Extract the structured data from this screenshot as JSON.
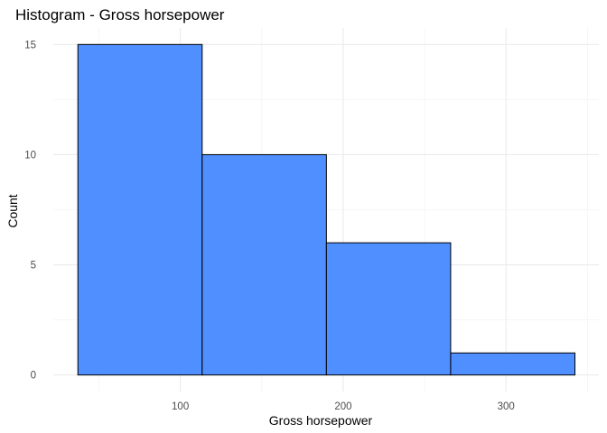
{
  "chart_data": {
    "type": "bar",
    "subtype": "histogram",
    "title": "Histogram - Gross horsepower",
    "xlabel": "Gross horsepower",
    "ylabel": "Count",
    "bins": [
      {
        "x0": 37.1,
        "x1": 113.4,
        "count": 15
      },
      {
        "x0": 113.4,
        "x1": 189.7,
        "count": 10
      },
      {
        "x0": 189.7,
        "x1": 266.0,
        "count": 6
      },
      {
        "x0": 266.0,
        "x1": 342.3,
        "count": 1
      }
    ],
    "xlim": [
      22,
      357
    ],
    "ylim": [
      -0.75,
      15.75
    ],
    "xticks": [
      100,
      200,
      300
    ],
    "xtick_labels": [
      "100",
      "200",
      "300"
    ],
    "xminor": [
      50,
      150,
      250,
      350
    ],
    "yticks": [
      0,
      5,
      10,
      15
    ],
    "ytick_labels": [
      "0",
      "5",
      "10",
      "15"
    ],
    "yminor": [
      2.5,
      7.5,
      12.5
    ],
    "grid": true,
    "legend": "none",
    "colors": {
      "fill": "#4F8FFF",
      "outline": "#000000",
      "grid_major": "#ebebeb",
      "grid_minor": "#f4f4f4",
      "tick_text": "#4d4d4d",
      "text": "#000000",
      "background": "#ffffff"
    }
  }
}
